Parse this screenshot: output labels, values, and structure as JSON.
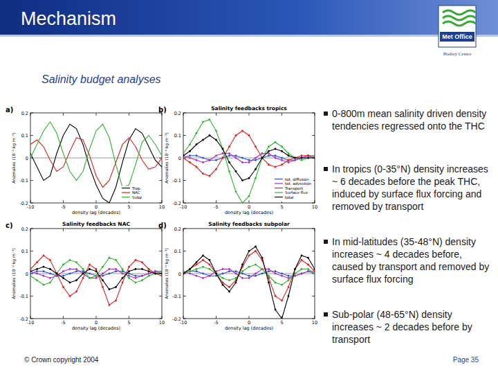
{
  "header": {
    "title": "Mechanism",
    "logo": "Met Office",
    "org": "Hadley Centre"
  },
  "subtitle": "Salinity budget analyses",
  "bullets": [
    "0-800m mean salinity driven density tendencies regressed onto the THC",
    "In tropics (0-35°N) density increases ~ 6 decades before the peak THC, induced by surface flux forcing and removed by transport",
    "In mid-latitudes (35-48°N) density increases ~ 4 decades before, caused by transport and removed by surface flux forcing",
    "Sub-polar (48-65°N) density increases ~ 2 decades before by transport"
  ],
  "footer": {
    "copyright": "© Crown copyright 2004",
    "page": "Page 35"
  },
  "chart_data": [
    {
      "type": "line",
      "panel": "a)",
      "x_label": "density lag (decades)",
      "y_label": "Anomalies (10⁻⁴ kg m⁻³)",
      "x": [
        -10,
        -9,
        -8,
        -7,
        -6,
        -5,
        -4,
        -3,
        -2,
        -1,
        0,
        1,
        2,
        3,
        4,
        5,
        6,
        7,
        8,
        9,
        10
      ],
      "xlim": [
        -10,
        10
      ],
      "ylim": [
        -0.2,
        0.2
      ],
      "xticks": [
        -10,
        -5,
        0,
        5,
        10
      ],
      "yticks": [
        -0.2,
        -0.1,
        0,
        0.1,
        0.2
      ],
      "legend": "bottom right",
      "series": [
        {
          "name": "Trop.",
          "color": "#000000",
          "values": [
            0.02,
            -0.04,
            -0.1,
            -0.08,
            0.02,
            0.1,
            0.15,
            0.13,
            0.06,
            -0.04,
            -0.12,
            -0.18,
            -0.2,
            -0.13,
            -0.02,
            0.08,
            0.13,
            0.11,
            0.05,
            -0.01,
            -0.04
          ]
        },
        {
          "name": "NAC",
          "color": "#e0201b",
          "values": [
            0.06,
            0.08,
            0.05,
            -0.01,
            -0.06,
            -0.04,
            0.03,
            0.09,
            0.08,
            0.01,
            -0.08,
            -0.13,
            -0.1,
            -0.02,
            0.06,
            0.09,
            0.05,
            -0.01,
            -0.05,
            -0.04,
            0.0
          ]
        },
        {
          "name": "Subp",
          "color": "#2fb52f",
          "values": [
            0.0,
            0.06,
            0.12,
            0.16,
            0.11,
            0.02,
            -0.06,
            -0.1,
            -0.06,
            0.04,
            0.12,
            0.15,
            0.09,
            -0.03,
            -0.13,
            -0.12,
            -0.03,
            0.07,
            0.1,
            0.06,
            0.01
          ]
        }
      ]
    },
    {
      "type": "line",
      "panel": "b)",
      "title": "Salinity feedbacks tropics",
      "x_label": "density lag (decades)",
      "y_label": "Anomalies (10⁻⁴ kg m⁻³)",
      "x": [
        -10,
        -9,
        -8,
        -7,
        -6,
        -5,
        -4,
        -3,
        -2,
        -1,
        0,
        1,
        2,
        3,
        4,
        5,
        6,
        7,
        8,
        9,
        10
      ],
      "xlim": [
        -10,
        10
      ],
      "ylim": [
        -0.2,
        0.2
      ],
      "xticks": [
        -10,
        -5,
        0,
        5,
        10
      ],
      "yticks": [
        -0.2,
        -0.1,
        0,
        0.1,
        0.2
      ],
      "legend": "bottom right",
      "series": [
        {
          "name": "tot. diffusion",
          "color": "#2a4fd6",
          "marker": "circle",
          "values": [
            0.0,
            0.01,
            0.01,
            0.0,
            -0.01,
            -0.01,
            0.0,
            0.01,
            0.01,
            0.0,
            -0.01,
            -0.01,
            0.0,
            0.01,
            0.01,
            0.0,
            -0.01,
            -0.01,
            0.0,
            0.01,
            0.0
          ]
        },
        {
          "name": "tot. advection",
          "color": "#b02cc4",
          "marker": "circle",
          "values": [
            0.01,
            0.0,
            -0.01,
            -0.02,
            -0.01,
            0.01,
            0.02,
            0.02,
            0.0,
            -0.02,
            -0.02,
            0.0,
            0.02,
            0.02,
            0.0,
            -0.01,
            -0.02,
            -0.01,
            0.0,
            0.01,
            0.01
          ]
        },
        {
          "name": "Transport",
          "color": "#e0201b",
          "marker": "circle",
          "values": [
            0.0,
            -0.02,
            -0.04,
            -0.07,
            -0.08,
            -0.05,
            0.0,
            0.05,
            0.1,
            0.12,
            0.1,
            0.05,
            0.0,
            -0.03,
            -0.04,
            -0.03,
            -0.01,
            0.0,
            0.01,
            0.01,
            0.0
          ]
        },
        {
          "name": "Surface flux",
          "color": "#2fb52f",
          "marker": "circle",
          "values": [
            0.02,
            0.06,
            0.11,
            0.16,
            0.17,
            0.12,
            0.04,
            -0.06,
            -0.15,
            -0.2,
            -0.17,
            -0.09,
            0.0,
            0.05,
            0.07,
            0.05,
            0.02,
            0.0,
            -0.01,
            0.0,
            0.01
          ]
        },
        {
          "name": "total",
          "color": "#000000",
          "marker": "circle",
          "values": [
            0.01,
            0.03,
            0.06,
            0.08,
            0.1,
            0.08,
            0.04,
            -0.02,
            -0.06,
            -0.1,
            -0.09,
            -0.05,
            0.0,
            0.03,
            0.04,
            0.03,
            0.01,
            0.0,
            0.0,
            0.0,
            0.0
          ]
        }
      ]
    },
    {
      "type": "line",
      "panel": "c)",
      "title": "Salinity feedbacks NAC",
      "x_label": "density lag (decades)",
      "y_label": "Anomalies (10⁻⁴ kg m⁻³)",
      "x": [
        -10,
        -9,
        -8,
        -7,
        -6,
        -5,
        -4,
        -3,
        -2,
        -1,
        0,
        1,
        2,
        3,
        4,
        5,
        6,
        7,
        8,
        9,
        10
      ],
      "xlim": [
        -10,
        10
      ],
      "ylim": [
        -0.2,
        0.2
      ],
      "xticks": [
        -10,
        -5,
        0,
        5,
        10
      ],
      "yticks": [
        -0.2,
        -0.1,
        0,
        0.1,
        0.2
      ],
      "series": [
        {
          "name": "tot. diffusion",
          "color": "#2a4fd6",
          "marker": "circle",
          "values": [
            0.0,
            0.01,
            0.01,
            0.0,
            -0.01,
            -0.01,
            0.0,
            0.01,
            0.01,
            0.0,
            -0.01,
            -0.01,
            0.0,
            0.01,
            0.01,
            0.0,
            -0.01,
            -0.01,
            0.0,
            0.01,
            0.0
          ]
        },
        {
          "name": "tot. advection",
          "color": "#b02cc4",
          "marker": "circle",
          "values": [
            0.01,
            0.0,
            -0.01,
            -0.02,
            -0.01,
            0.01,
            0.02,
            0.02,
            0.0,
            -0.02,
            -0.02,
            0.0,
            0.02,
            0.02,
            0.0,
            -0.01,
            -0.02,
            -0.01,
            0.0,
            0.01,
            0.01
          ]
        },
        {
          "name": "Transport",
          "color": "#e0201b",
          "marker": "circle",
          "values": [
            0.02,
            0.05,
            0.08,
            0.06,
            0.0,
            -0.06,
            -0.1,
            -0.08,
            -0.02,
            0.04,
            0.02,
            -0.06,
            -0.14,
            -0.12,
            -0.04,
            0.03,
            0.06,
            0.05,
            0.02,
            0.0,
            -0.01
          ]
        },
        {
          "name": "Surface flux",
          "color": "#2fb52f",
          "marker": "circle",
          "values": [
            -0.01,
            -0.03,
            -0.05,
            -0.04,
            0.0,
            0.04,
            0.06,
            0.05,
            0.02,
            -0.02,
            -0.01,
            0.03,
            0.07,
            0.06,
            0.02,
            -0.02,
            -0.04,
            -0.03,
            -0.01,
            0.0,
            0.01
          ]
        },
        {
          "name": "total",
          "color": "#000000",
          "marker": "circle",
          "values": [
            0.01,
            0.02,
            0.03,
            0.02,
            0.0,
            -0.02,
            -0.04,
            -0.03,
            0.0,
            0.02,
            0.01,
            -0.03,
            -0.07,
            -0.06,
            -0.02,
            0.01,
            0.02,
            0.02,
            0.01,
            0.0,
            0.0
          ]
        }
      ]
    },
    {
      "type": "line",
      "panel": "d)",
      "title": "Salinity feedbacks subpolar",
      "x_label": "density lag (decades)",
      "y_label": "Anomalies (10⁻⁴ kg m⁻³)",
      "x": [
        -10,
        -9,
        -8,
        -7,
        -6,
        -5,
        -4,
        -3,
        -2,
        -1,
        0,
        1,
        2,
        3,
        4,
        5,
        6,
        7,
        8,
        9,
        10
      ],
      "xlim": [
        -10,
        10
      ],
      "ylim": [
        -0.2,
        0.2
      ],
      "xticks": [
        -10,
        -5,
        0,
        5,
        10
      ],
      "yticks": [
        -0.2,
        -0.1,
        0,
        0.1,
        0.2
      ],
      "series": [
        {
          "name": "tot. diffusion",
          "color": "#2a4fd6",
          "marker": "circle",
          "values": [
            0.0,
            0.01,
            0.01,
            0.0,
            -0.01,
            -0.01,
            0.0,
            0.01,
            0.01,
            0.0,
            -0.01,
            -0.01,
            0.0,
            0.01,
            0.01,
            0.0,
            -0.01,
            -0.01,
            0.0,
            0.01,
            0.0
          ]
        },
        {
          "name": "tot. advection",
          "color": "#b02cc4",
          "marker": "circle",
          "values": [
            0.01,
            0.0,
            -0.01,
            -0.02,
            -0.01,
            0.01,
            0.02,
            0.02,
            0.0,
            -0.02,
            -0.02,
            0.0,
            0.02,
            0.02,
            0.0,
            -0.01,
            -0.02,
            -0.01,
            0.0,
            0.01,
            0.01
          ]
        },
        {
          "name": "Transport",
          "color": "#e0201b",
          "marker": "circle",
          "values": [
            0.0,
            0.02,
            0.04,
            0.06,
            0.04,
            0.0,
            -0.04,
            -0.06,
            -0.03,
            0.03,
            0.08,
            0.1,
            0.06,
            -0.02,
            -0.1,
            -0.12,
            -0.06,
            0.02,
            0.06,
            0.04,
            0.01
          ]
        },
        {
          "name": "Surface flux",
          "color": "#2fb52f",
          "marker": "circle",
          "values": [
            0.0,
            0.01,
            0.02,
            0.03,
            0.02,
            0.0,
            -0.02,
            -0.03,
            -0.02,
            0.01,
            0.03,
            0.04,
            0.02,
            -0.01,
            -0.04,
            -0.05,
            -0.03,
            0.0,
            0.02,
            0.02,
            0.0
          ]
        },
        {
          "name": "total",
          "color": "#000000",
          "marker": "circle",
          "values": [
            0.0,
            0.02,
            0.05,
            0.08,
            0.06,
            0.0,
            -0.05,
            -0.08,
            -0.04,
            0.04,
            0.1,
            0.12,
            0.07,
            -0.04,
            -0.16,
            -0.2,
            -0.1,
            0.02,
            0.08,
            0.07,
            0.02
          ]
        }
      ]
    }
  ]
}
